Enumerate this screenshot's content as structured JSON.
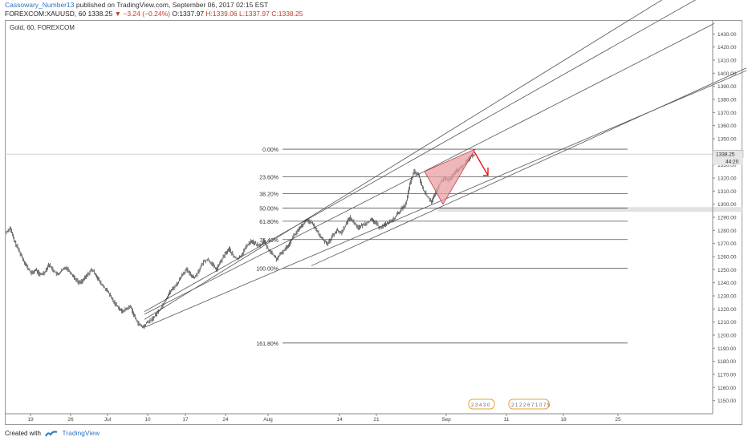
{
  "header": {
    "author": "Cassowary_Number13",
    "published_text": "published on TradingView.com, September 06, 2017 02:15 EST",
    "symbol_line": "FOREXCOM:XAUUSD, 60",
    "last": "1338.25",
    "change": "−3.24 (−0.24%)",
    "open": "O:1337.97",
    "high": "H:1339.06",
    "low": "L:1337.97",
    "close": "C:1338.25"
  },
  "chart_title": "Gold, 60, FOREXCOM",
  "footer": {
    "created_with": "Created with",
    "brand": "TradingView"
  },
  "colors": {
    "candle": "#333333",
    "line": "#555555",
    "triangle_fill": "#e8a0a3",
    "triangle_stroke": "#c0394b",
    "arrow": "#e8000b",
    "user_link": "#2f76c2",
    "negative": "#c0392b"
  },
  "chart_data": {
    "type": "candlestick",
    "ylim": [
      1140,
      1440
    ],
    "y_ticks": [
      1150,
      1160,
      1170,
      1180,
      1190,
      1200,
      1210,
      1220,
      1230,
      1240,
      1250,
      1260,
      1270,
      1280,
      1290,
      1300,
      1310,
      1320,
      1330,
      1340,
      1350,
      1360,
      1370,
      1380,
      1390,
      1400,
      1410,
      1420,
      1430
    ],
    "x_ticks": [
      "19",
      "26",
      "Jul",
      "10",
      "17",
      "24",
      "Aug",
      "14",
      "21",
      "Sep",
      "11",
      "18",
      "25"
    ],
    "price_label": "1338.25",
    "price_label2": "44:20",
    "path": [
      1278,
      1282,
      1272,
      1265,
      1258,
      1252,
      1247,
      1250,
      1246,
      1248,
      1254,
      1250,
      1246,
      1249,
      1252,
      1248,
      1244,
      1240,
      1242,
      1246,
      1250,
      1246,
      1240,
      1236,
      1232,
      1226,
      1222,
      1218,
      1220,
      1222,
      1214,
      1208,
      1206,
      1210,
      1212,
      1216,
      1220,
      1226,
      1232,
      1236,
      1240,
      1246,
      1250,
      1246,
      1244,
      1250,
      1256,
      1258,
      1254,
      1250,
      1256,
      1262,
      1266,
      1260,
      1258,
      1262,
      1268,
      1272,
      1270,
      1268,
      1272,
      1266,
      1262,
      1258,
      1262,
      1266,
      1270,
      1276,
      1280,
      1284,
      1288,
      1286,
      1282,
      1276,
      1272,
      1270,
      1276,
      1280,
      1278,
      1284,
      1290,
      1286,
      1282,
      1284,
      1286,
      1288,
      1286,
      1282,
      1284,
      1286,
      1288,
      1292,
      1296,
      1300,
      1315,
      1325,
      1322,
      1312,
      1306,
      1302,
      1308,
      1316,
      1320,
      1318,
      1322,
      1326,
      1328,
      1332,
      1336,
      1338
    ],
    "fib_levels": [
      {
        "label": "0.00%",
        "price": 1342
      },
      {
        "label": "23.60%",
        "price": 1321
      },
      {
        "label": "38.20%",
        "price": 1308
      },
      {
        "label": "50.00%",
        "price": 1297
      },
      {
        "label": "61.80%",
        "price": 1287
      },
      {
        "label": "76.40%",
        "price": 1273
      },
      {
        "label": "100.00%",
        "price": 1251
      },
      {
        "label": "161.80%",
        "price": 1194
      }
    ],
    "events": [
      "2 3 4 3 0",
      "2 1 2 2 6 7 1 0 7 5"
    ]
  }
}
